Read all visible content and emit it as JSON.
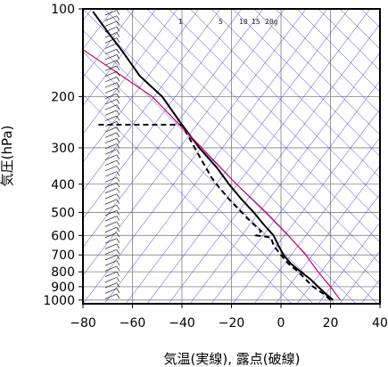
{
  "chart_data": {
    "type": "line",
    "title": "",
    "xlabel": "気温(実線), 露点(破線)",
    "ylabel": "気圧(hPa)",
    "xlim": [
      -80,
      40
    ],
    "ylim": [
      1030,
      100
    ],
    "y_scale": "log",
    "x_ticks": [
      "−80",
      "−60",
      "−40",
      "−20",
      "0",
      "20",
      "40"
    ],
    "x_tick_values": [
      -80,
      -60,
      -40,
      -20,
      0,
      20,
      40
    ],
    "y_ticks": [
      "100",
      "200",
      "300",
      "400",
      "500",
      "600",
      "700",
      "800",
      "900",
      "1000"
    ],
    "y_tick_values": [
      100,
      200,
      300,
      400,
      500,
      600,
      700,
      800,
      900,
      1000
    ],
    "mixing_ratio_labels": [
      "1",
      "5",
      "10",
      "15",
      "20g"
    ],
    "mixing_ratio_values": [
      1,
      5,
      10,
      15,
      20
    ],
    "grid": true,
    "series": [
      {
        "role": "temperature",
        "style": "solid",
        "color": "#000000",
        "points": [
          [
            21,
            1000
          ],
          [
            18,
            950
          ],
          [
            15,
            900
          ],
          [
            12,
            850
          ],
          [
            8,
            800
          ],
          [
            4,
            750
          ],
          [
            1,
            700
          ],
          [
            -1,
            650
          ],
          [
            -3,
            600
          ],
          [
            -7,
            550
          ],
          [
            -11,
            500
          ],
          [
            -16,
            450
          ],
          [
            -21,
            400
          ],
          [
            -26,
            350
          ],
          [
            -33,
            300
          ],
          [
            -40,
            250
          ],
          [
            -48,
            200
          ],
          [
            -57,
            170
          ],
          [
            -64,
            140
          ],
          [
            -70,
            120
          ],
          [
            -76,
            102
          ]
        ]
      },
      {
        "role": "dewpoint",
        "style": "dashed",
        "color": "#000000",
        "points": [
          [
            20,
            1000
          ],
          [
            17,
            950
          ],
          [
            13,
            900
          ],
          [
            10,
            850
          ],
          [
            7,
            800
          ],
          [
            3,
            750
          ],
          [
            0,
            700
          ],
          [
            -3,
            650
          ],
          [
            -4,
            610
          ],
          [
            -10,
            600
          ],
          [
            -8,
            580
          ],
          [
            -13,
            530
          ],
          [
            -21,
            450
          ],
          [
            -25,
            410
          ],
          [
            -28,
            380
          ],
          [
            -33,
            320
          ],
          [
            -40,
            250
          ],
          [
            -74,
            250
          ]
        ]
      },
      {
        "role": "parcel",
        "style": "solid",
        "color": "#cc0066",
        "points": [
          [
            24,
            1000
          ],
          [
            20,
            900
          ],
          [
            15,
            800
          ],
          [
            10,
            700
          ],
          [
            3,
            600
          ],
          [
            -6,
            500
          ],
          [
            -18,
            400
          ],
          [
            -32,
            300
          ],
          [
            -52,
            200
          ],
          [
            -80,
            138
          ]
        ]
      }
    ],
    "wind_barbs_column_x": -71,
    "wind_barbs_note": ""
  },
  "colors": {
    "grid": "#808080",
    "isotherm_lines": "#3333cc",
    "temperature": "#000000",
    "dewpoint": "#000000",
    "parcel": "#cc0066",
    "barbs": "#000000"
  }
}
